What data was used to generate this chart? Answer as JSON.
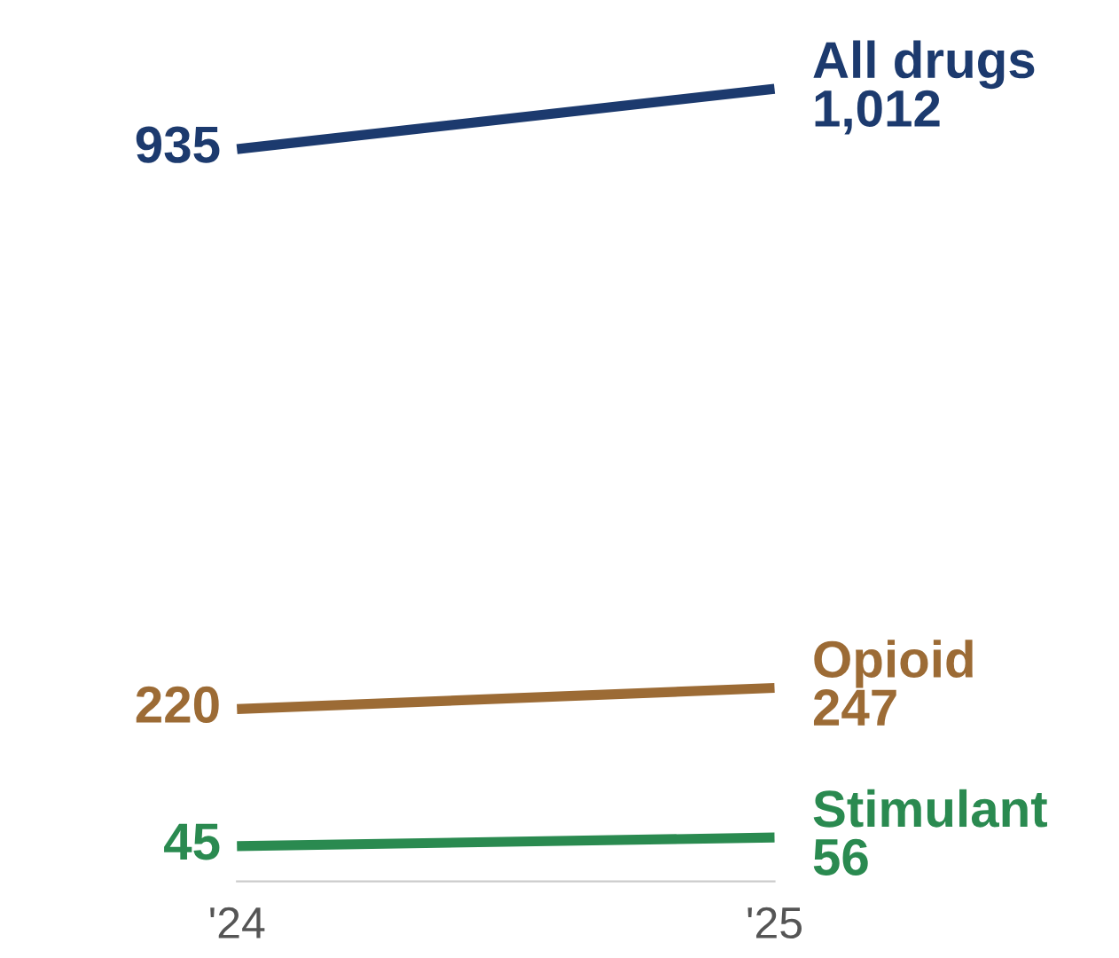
{
  "chart_data": {
    "type": "line",
    "categories": [
      "'24",
      "'25"
    ],
    "series": [
      {
        "name": "All drugs",
        "color": "#1c3a6e",
        "values": [
          935,
          1012
        ],
        "value_labels": [
          "935",
          "1,012"
        ]
      },
      {
        "name": "Opioid",
        "color": "#9c6b35",
        "values": [
          220,
          247
        ],
        "value_labels": [
          "220",
          "247"
        ]
      },
      {
        "name": "Stimulant",
        "color": "#2a8a50",
        "values": [
          45,
          56
        ],
        "value_labels": [
          "45",
          "56"
        ]
      }
    ],
    "tick_labels": "x",
    "grid": false,
    "legend": false,
    "marker": "none",
    "line_style": "solid"
  }
}
